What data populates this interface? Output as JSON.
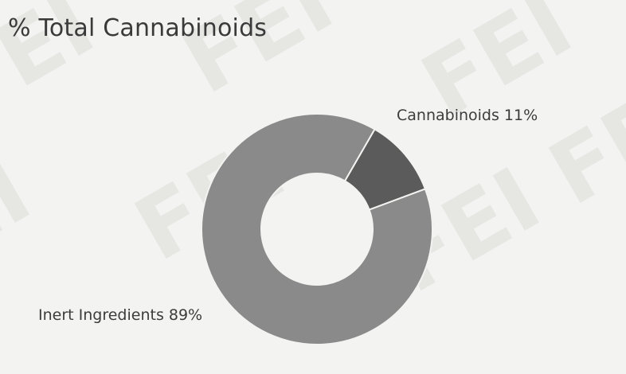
{
  "chart_data": {
    "type": "pie",
    "title": "% Total Cannabinoids",
    "donut": true,
    "slices": [
      {
        "label": "Cannabinoids 11%",
        "value": 11,
        "color": "#5b5b5b"
      },
      {
        "label": "Inert Ingredients 89%",
        "value": 89,
        "color": "#8a8a8a"
      }
    ]
  },
  "watermark": {
    "text": "FEI"
  }
}
